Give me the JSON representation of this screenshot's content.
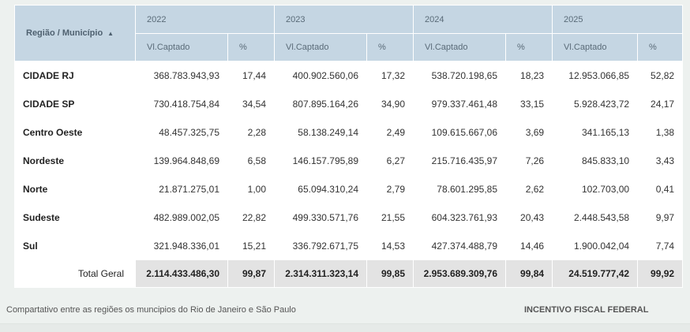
{
  "table": {
    "region_header": "Região / Município",
    "years": [
      "2022",
      "2023",
      "2024",
      "2025"
    ],
    "value_header": "Vl.Captado",
    "pct_header": "%",
    "rows": [
      {
        "region": "CIDADE RJ",
        "cells": [
          "368.783.943,93",
          "17,44",
          "400.902.560,06",
          "17,32",
          "538.720.198,65",
          "18,23",
          "12.953.066,85",
          "52,82"
        ]
      },
      {
        "region": "CIDADE SP",
        "cells": [
          "730.418.754,84",
          "34,54",
          "807.895.164,26",
          "34,90",
          "979.337.461,48",
          "33,15",
          "5.928.423,72",
          "24,17"
        ]
      },
      {
        "region": "Centro Oeste",
        "cells": [
          "48.457.325,75",
          "2,28",
          "58.138.249,14",
          "2,49",
          "109.615.667,06",
          "3,69",
          "341.165,13",
          "1,38"
        ]
      },
      {
        "region": "Nordeste",
        "cells": [
          "139.964.848,69",
          "6,58",
          "146.157.795,89",
          "6,27",
          "215.716.435,97",
          "7,26",
          "845.833,10",
          "3,43"
        ]
      },
      {
        "region": "Norte",
        "cells": [
          "21.871.275,01",
          "1,00",
          "65.094.310,24",
          "2,79",
          "78.601.295,85",
          "2,62",
          "102.703,00",
          "0,41"
        ]
      },
      {
        "region": "Sudeste",
        "cells": [
          "482.989.002,05",
          "22,82",
          "499.330.571,76",
          "21,55",
          "604.323.761,93",
          "20,43",
          "2.448.543,58",
          "9,97"
        ]
      },
      {
        "region": "Sul",
        "cells": [
          "321.948.336,01",
          "15,21",
          "336.792.671,75",
          "14,53",
          "427.374.488,79",
          "14,46",
          "1.900.042,04",
          "7,74"
        ]
      }
    ],
    "total": {
      "label": "Total Geral",
      "cells": [
        "2.114.433.486,30",
        "99,87",
        "2.314.311.323,14",
        "99,85",
        "2.953.689.309,76",
        "99,84",
        "24.519.777,42",
        "99,92"
      ]
    }
  },
  "footer": {
    "caption": "Compartativo entre as regiões os muncipios do Rio de Janeiro e São Paulo",
    "brand": "INCENTIVO FISCAL FEDERAL"
  }
}
